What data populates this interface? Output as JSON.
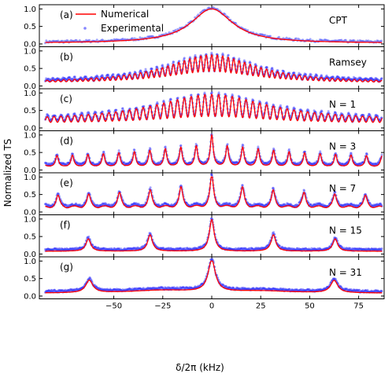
{
  "figure": {
    "ylabel": "Normalized TS",
    "xlabel": "δ/2π  (kHz)"
  },
  "legend": {
    "numerical_label": "Numerical",
    "experimental_label": "Experimental"
  },
  "colors": {
    "numerical": "#ff0000",
    "experimental": "#3333ff",
    "axes": "#000000"
  },
  "chart_data": {
    "type": "line",
    "x_range": [
      -88,
      88
    ],
    "x_ticks": [
      -50,
      -25,
      0,
      25,
      50,
      75
    ],
    "y_range": [
      -0.08,
      1.12
    ],
    "y_ticks": [
      0.0,
      0.5,
      1.0
    ],
    "grid": false,
    "legend_position": "top-left (panel a)",
    "series_names": [
      "Numerical",
      "Experimental"
    ],
    "panels": [
      {
        "id": "a",
        "tag": "(a)",
        "label": "CPT",
        "kind": "cpt",
        "description_values": {
          "peak_x": 0,
          "peak_y": 1.0,
          "halfwidth_kHz": 13
        }
      },
      {
        "id": "b",
        "tag": "(b)",
        "label": "Ramsey",
        "kind": "ramsey",
        "description_values": {
          "fringe_period_kHz": 2.8,
          "envelope_halfwidth_kHz": 28,
          "peak_y": 0.95,
          "baseline_y": 0.1
        }
      },
      {
        "id": "c",
        "tag": "(c)",
        "label": "N = 1",
        "kind": "comb",
        "N": 1,
        "description_values": {
          "fringe_period_kHz": 3.5,
          "peak_y": 0.95,
          "baseline_y": 0.15
        }
      },
      {
        "id": "d",
        "tag": "(d)",
        "label": "N = 3",
        "kind": "comb",
        "N": 3,
        "description_values": {
          "peak_spacing_kHz": 7.9,
          "peak_y": 1.0,
          "baseline_y": 0.1
        }
      },
      {
        "id": "e",
        "tag": "(e)",
        "label": "N = 7",
        "kind": "comb",
        "N": 7,
        "description_values": {
          "peak_spacing_kHz": 15.7,
          "peak_y": 1.0,
          "baseline_y": 0.15
        }
      },
      {
        "id": "f",
        "tag": "(f)",
        "label": "N = 15",
        "kind": "comb",
        "N": 15,
        "description_values": {
          "peak_spacing_kHz": 31.5,
          "peak_y": 1.0,
          "baseline_y": 0.1
        }
      },
      {
        "id": "g",
        "tag": "(g)",
        "label": "N = 31",
        "kind": "comb",
        "N": 31,
        "description_values": {
          "peak_spacing_kHz": 62.5,
          "peak_y": 1.0,
          "baseline_y": 0.1
        }
      }
    ]
  }
}
